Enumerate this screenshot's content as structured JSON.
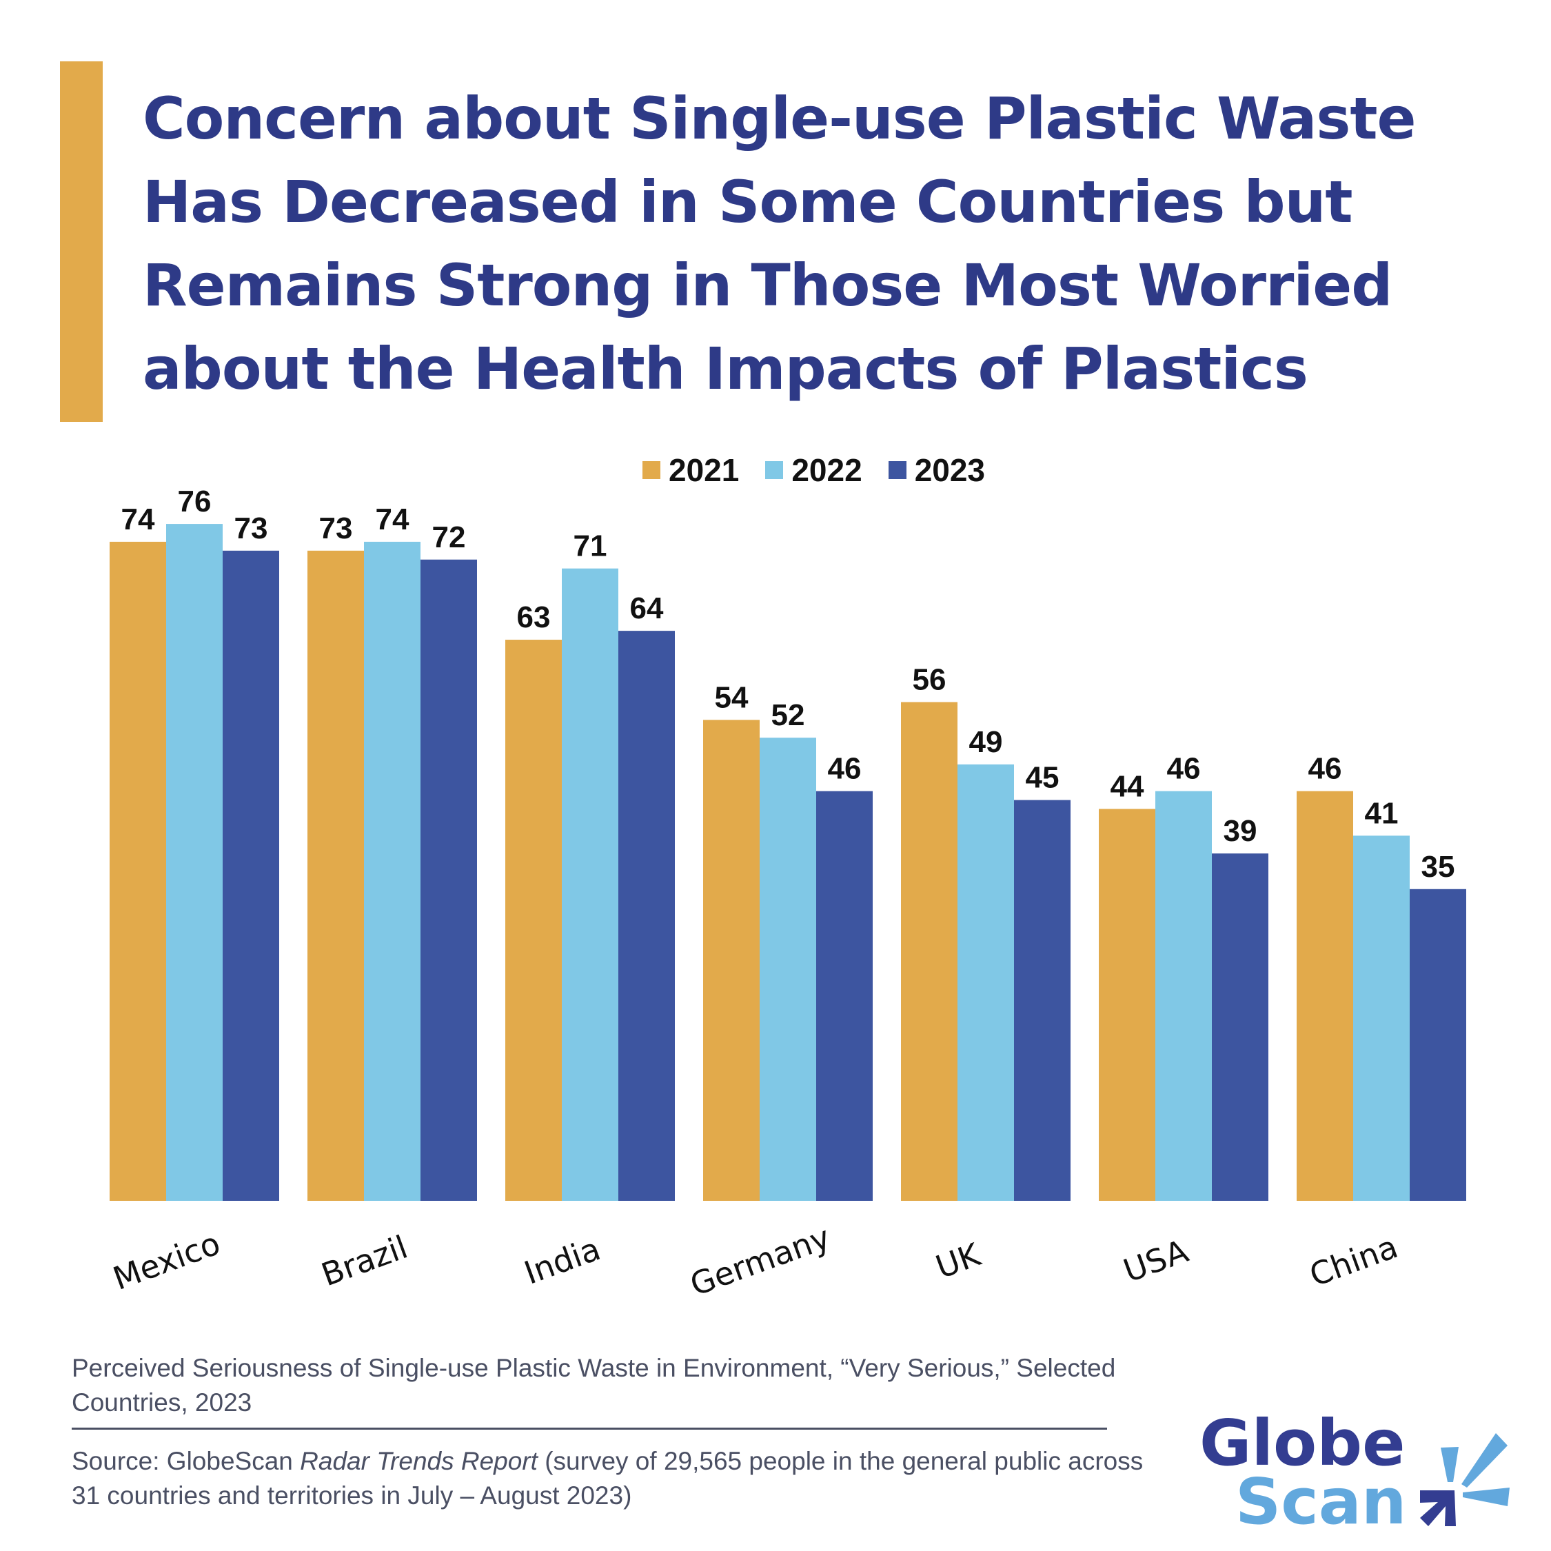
{
  "title": "Concern about Single-use Plastic Waste Has Decreased in Some Countries but Remains Strong in Those Most Worried about the Health Impacts of Plastics",
  "caption": "Perceived Seriousness of Single-use Plastic Waste in Environment, “Very Serious,” Selected Countries, 2023",
  "source": {
    "prefix": "Source: GlobeScan ",
    "italic": "Radar Trends Report",
    "suffix": " (survey of 29,565 people in the general public across 31 countries and territories in July – August 2023)"
  },
  "logo": {
    "line1": "Globe",
    "line2": "Scan"
  },
  "colors": {
    "accent": "#E2AA4B",
    "title": "#2E3A87",
    "2021": "#E2AA4B",
    "2022": "#80C8E6",
    "2023": "#3D55A0"
  },
  "chart_data": {
    "type": "bar",
    "title": "",
    "xlabel": "",
    "ylabel": "",
    "ylim": [
      0,
      80
    ],
    "grid": false,
    "legend_position": "top",
    "categories": [
      "Mexico",
      "Brazil",
      "India",
      "Germany",
      "UK",
      "USA",
      "China"
    ],
    "series": [
      {
        "name": "2021",
        "color": "#E2AA4B",
        "values": [
          74,
          73,
          63,
          54,
          56,
          44,
          46
        ]
      },
      {
        "name": "2022",
        "color": "#80C8E6",
        "values": [
          76,
          74,
          71,
          52,
          49,
          46,
          41
        ]
      },
      {
        "name": "2023",
        "color": "#3D55A0",
        "values": [
          73,
          72,
          64,
          46,
          45,
          39,
          35
        ]
      }
    ]
  }
}
